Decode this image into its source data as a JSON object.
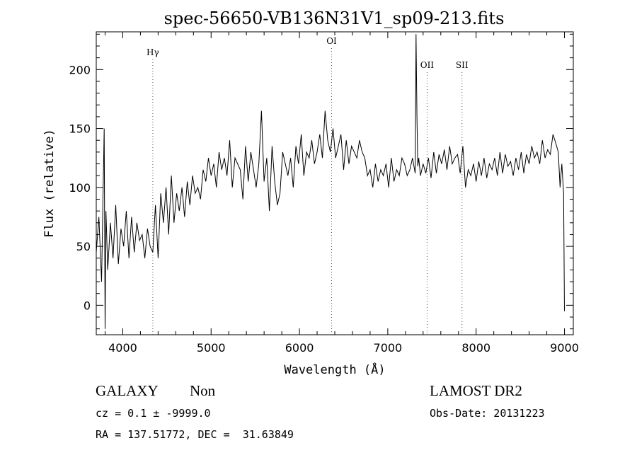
{
  "chart_data": {
    "type": "line",
    "title": "spec-56650-VB136N31V1_sp09-213.fits",
    "xlabel": "Wavelength (Å)",
    "ylabel": "Flux (relative)",
    "xlim": [
      3700,
      9100
    ],
    "ylim": [
      -25,
      232
    ],
    "xticks": [
      4000,
      5000,
      6000,
      7000,
      8000,
      9000
    ],
    "yticks": [
      0,
      50,
      100,
      150,
      200
    ],
    "grid": false,
    "series": [
      {
        "x": [
          3700,
          3730,
          3760,
          3790,
          3800,
          3810,
          3830,
          3860,
          3890,
          3920,
          3950,
          3980,
          4010,
          4040,
          4070,
          4100,
          4130,
          4160,
          4190,
          4220,
          4250,
          4280,
          4310,
          4340,
          4370,
          4400,
          4430,
          4460,
          4490,
          4520,
          4550,
          4580,
          4610,
          4640,
          4670,
          4700,
          4730,
          4760,
          4790,
          4820,
          4850,
          4880,
          4910,
          4940,
          4970,
          5000,
          5030,
          5060,
          5090,
          5120,
          5150,
          5180,
          5210,
          5240,
          5270,
          5300,
          5330,
          5360,
          5390,
          5420,
          5450,
          5480,
          5510,
          5540,
          5570,
          5600,
          5630,
          5660,
          5690,
          5720,
          5750,
          5780,
          5810,
          5840,
          5870,
          5900,
          5930,
          5960,
          5990,
          6020,
          6050,
          6080,
          6110,
          6140,
          6170,
          6200,
          6230,
          6260,
          6290,
          6320,
          6350,
          6380,
          6410,
          6440,
          6470,
          6500,
          6530,
          6560,
          6590,
          6620,
          6650,
          6680,
          6710,
          6740,
          6770,
          6800,
          6830,
          6860,
          6890,
          6920,
          6950,
          6980,
          7010,
          7040,
          7070,
          7100,
          7130,
          7160,
          7190,
          7220,
          7250,
          7280,
          7310,
          7320,
          7330,
          7340,
          7350,
          7370,
          7400,
          7430,
          7460,
          7490,
          7520,
          7550,
          7580,
          7610,
          7640,
          7670,
          7700,
          7730,
          7760,
          7790,
          7820,
          7850,
          7880,
          7910,
          7940,
          7970,
          8000,
          8030,
          8060,
          8090,
          8120,
          8150,
          8180,
          8210,
          8240,
          8270,
          8300,
          8330,
          8360,
          8390,
          8420,
          8450,
          8480,
          8510,
          8540,
          8570,
          8600,
          8630,
          8660,
          8690,
          8720,
          8750,
          8780,
          8810,
          8840,
          8870,
          8900,
          8930,
          8950,
          8970,
          8990,
          9000
        ],
        "values": [
          45,
          75,
          20,
          150,
          -20,
          80,
          30,
          70,
          40,
          85,
          35,
          65,
          50,
          80,
          40,
          75,
          45,
          70,
          55,
          60,
          40,
          65,
          50,
          45,
          85,
          40,
          95,
          70,
          100,
          60,
          110,
          70,
          95,
          80,
          100,
          75,
          105,
          85,
          110,
          95,
          100,
          90,
          115,
          105,
          125,
          110,
          120,
          100,
          130,
          115,
          125,
          110,
          140,
          100,
          125,
          120,
          115,
          90,
          135,
          105,
          130,
          115,
          100,
          120,
          165,
          105,
          125,
          80,
          135,
          105,
          85,
          95,
          130,
          120,
          110,
          125,
          100,
          135,
          120,
          145,
          110,
          130,
          125,
          140,
          120,
          130,
          145,
          125,
          165,
          140,
          130,
          150,
          125,
          135,
          145,
          115,
          140,
          120,
          135,
          130,
          125,
          140,
          130,
          125,
          110,
          115,
          100,
          120,
          105,
          115,
          110,
          120,
          100,
          125,
          105,
          115,
          110,
          125,
          120,
          110,
          115,
          125,
          112,
          230,
          160,
          118,
          125,
          110,
          120,
          112,
          125,
          108,
          130,
          112,
          128,
          120,
          132,
          115,
          135,
          120,
          125,
          128,
          112,
          135,
          100,
          115,
          110,
          120,
          105,
          122,
          110,
          125,
          108,
          120,
          115,
          125,
          110,
          130,
          112,
          128,
          118,
          122,
          110,
          125,
          115,
          130,
          112,
          128,
          120,
          135,
          125,
          130,
          120,
          140,
          125,
          132,
          128,
          145,
          138,
          130,
          100,
          120,
          95,
          -5
        ]
      }
    ],
    "line_markers": [
      {
        "label": "Hγ",
        "x": 4340
      },
      {
        "label": "OI",
        "x": 6364
      },
      {
        "label": "OII",
        "x": 7445
      },
      {
        "label": "SII",
        "x": 7840
      }
    ]
  },
  "info": {
    "class_label": "GALAXY",
    "subclass_label": "Non",
    "survey_label": "LAMOST DR2",
    "redshift_text": "cz = 0.1 ± -9999.0",
    "obsdate_text": "Obs-Date: 20131223",
    "coords_text": "RA = 137.51772, DEC =  31.63849"
  }
}
